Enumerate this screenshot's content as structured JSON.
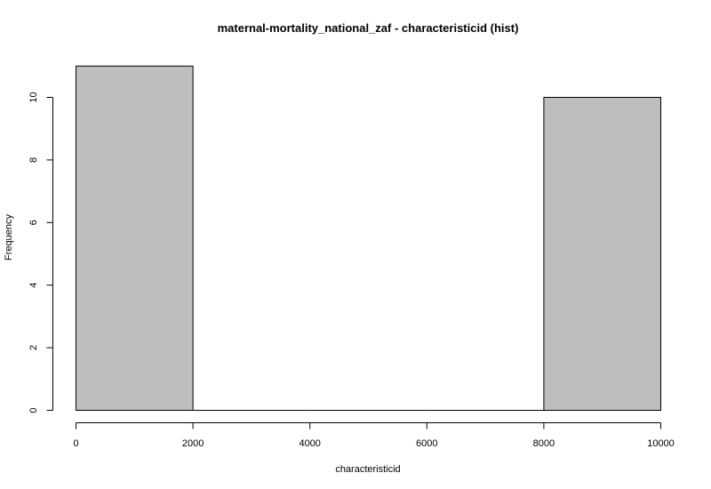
{
  "chart_data": {
    "type": "bar",
    "subtype": "histogram",
    "title": "maternal-mortality_national_zaf - characteristicid (hist)",
    "xlabel": "characteristicid",
    "ylabel": "Frequency",
    "bins": [
      {
        "x0": 0,
        "x1": 2000,
        "count": 11
      },
      {
        "x0": 2000,
        "x1": 4000,
        "count": 0
      },
      {
        "x0": 4000,
        "x1": 6000,
        "count": 0
      },
      {
        "x0": 6000,
        "x1": 8000,
        "count": 0
      },
      {
        "x0": 8000,
        "x1": 10000,
        "count": 10
      }
    ],
    "xlim": [
      0,
      10000
    ],
    "ylim": [
      0,
      11
    ],
    "x_ticks": [
      0,
      2000,
      4000,
      6000,
      8000,
      10000
    ],
    "y_ticks": [
      0,
      2,
      4,
      6,
      8,
      10
    ],
    "grid": false,
    "bar_color": "#bebebe",
    "edge_color": "#000000"
  }
}
